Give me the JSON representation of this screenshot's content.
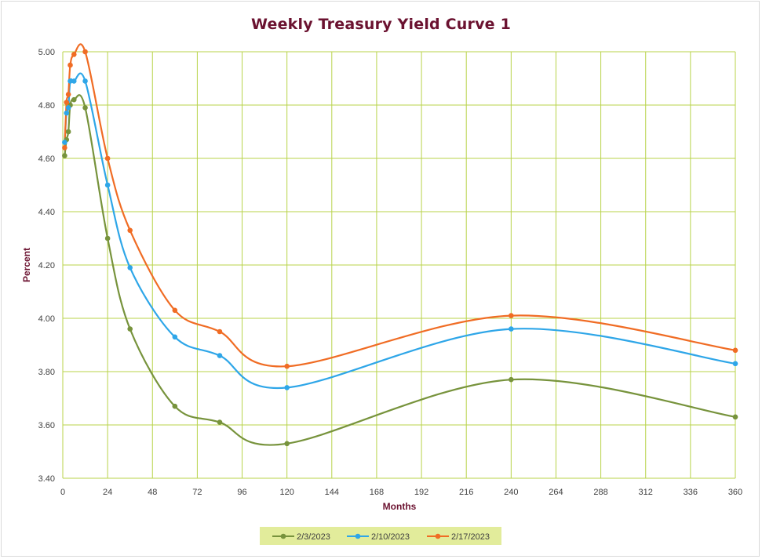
{
  "chart_data": {
    "type": "line",
    "title": "Weekly Treasury Yield Curve 1",
    "xlabel": "Months",
    "ylabel": "Percent",
    "xlim": [
      0,
      360
    ],
    "ylim": [
      3.4,
      5.0
    ],
    "x_ticks": [
      "0",
      "24",
      "48",
      "72",
      "96",
      "120",
      "144",
      "168",
      "192",
      "216",
      "240",
      "264",
      "288",
      "312",
      "336",
      "360"
    ],
    "y_ticks": [
      "3.40",
      "3.60",
      "3.80",
      "4.00",
      "4.20",
      "4.40",
      "4.60",
      "4.80",
      "5.00"
    ],
    "grid": true,
    "smooth": true,
    "legend_position": "bottom",
    "x": [
      1,
      2,
      3,
      4,
      6,
      12,
      24,
      36,
      60,
      84,
      120,
      240,
      360
    ],
    "series": [
      {
        "name": "2/3/2023",
        "color": "#77933c",
        "values": [
          4.61,
          4.67,
          4.7,
          4.8,
          4.82,
          4.79,
          4.3,
          3.96,
          3.67,
          3.61,
          3.53,
          3.77,
          3.63
        ]
      },
      {
        "name": "2/10/2023",
        "color": "#2ea6e8",
        "values": [
          4.66,
          4.77,
          4.79,
          4.89,
          4.89,
          4.89,
          4.5,
          4.19,
          3.93,
          3.86,
          3.74,
          3.96,
          3.83
        ]
      },
      {
        "name": "2/17/2023",
        "color": "#f06c24",
        "values": [
          4.64,
          4.81,
          4.84,
          4.95,
          4.99,
          5.0,
          4.6,
          4.33,
          4.03,
          3.95,
          3.82,
          4.01,
          3.88
        ]
      }
    ]
  },
  "colors": {
    "title": "#6b1230",
    "axis_label": "#6b1230",
    "grid": "#b8d34a",
    "legend_background": "#e2ec9b",
    "frame_border": "#d9d9d9"
  }
}
